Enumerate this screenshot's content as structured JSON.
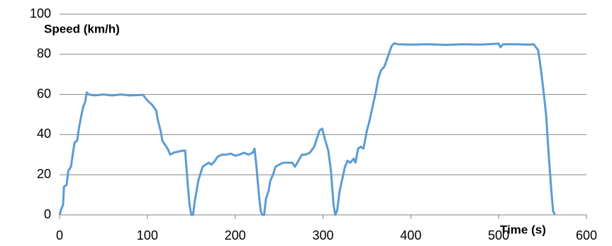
{
  "chart_data": {
    "type": "line",
    "x_label": "Time (s)",
    "y_label": "Speed (km/h)",
    "xlim": [
      0,
      600
    ],
    "xticks": [
      0,
      100,
      200,
      300,
      400,
      500,
      600
    ],
    "ylim": [
      0,
      100
    ],
    "yticks": [
      0,
      20,
      40,
      60,
      80,
      100
    ],
    "grid": true,
    "series": [
      {
        "name": "Speed",
        "color": "#5b9bd5",
        "x": [
          0,
          2,
          4,
          5,
          8,
          10,
          13,
          15,
          17,
          20,
          22,
          25,
          27,
          29,
          31,
          33,
          40,
          50,
          60,
          70,
          80,
          95,
          100,
          105,
          110,
          112,
          115,
          117,
          120,
          123,
          126,
          130,
          140,
          143,
          146,
          148,
          150,
          152,
          154,
          156,
          158,
          160,
          163,
          166,
          170,
          173,
          177,
          180,
          185,
          190,
          195,
          200,
          205,
          210,
          215,
          220,
          222,
          224,
          227,
          229,
          231,
          233,
          235,
          238,
          240,
          243,
          246,
          250,
          255,
          260,
          265,
          268,
          272,
          276,
          280,
          285,
          290,
          293,
          296,
          299,
          302,
          306,
          309,
          312,
          314,
          316,
          319,
          322,
          325,
          328,
          331,
          335,
          337,
          340,
          343,
          346,
          350,
          353,
          357,
          360,
          363,
          366,
          370,
          374,
          378,
          381,
          385,
          400,
          420,
          440,
          460,
          480,
          500,
          502,
          505,
          520,
          535,
          540,
          545,
          548,
          551,
          554,
          557,
          560,
          562,
          564
        ],
        "values": [
          0,
          3,
          5,
          14,
          15,
          22,
          24,
          30,
          36,
          37,
          43,
          50,
          54,
          56,
          61,
          60,
          59.5,
          60,
          59.5,
          60,
          59.5,
          59.8,
          57,
          55,
          52,
          47,
          42,
          37,
          35,
          33,
          30,
          31,
          32,
          32,
          15,
          5,
          0,
          0,
          7,
          12,
          17,
          20,
          24,
          25,
          26,
          25,
          27,
          29,
          30,
          30,
          30.5,
          29.5,
          30,
          31,
          30,
          31,
          33,
          25,
          10,
          2,
          0,
          0,
          8,
          12,
          17,
          20,
          24,
          25,
          26,
          26,
          26,
          24,
          27,
          30,
          30,
          31,
          34,
          38,
          42,
          43,
          38,
          32,
          22,
          5,
          0,
          2,
          12,
          18,
          24,
          27,
          26,
          28,
          26,
          33,
          34,
          33,
          42,
          47,
          55,
          61,
          68,
          72,
          74,
          79,
          84,
          85.5,
          85,
          84.8,
          85,
          84.7,
          85,
          84.8,
          85.3,
          83.5,
          85,
          85,
          84.8,
          85,
          82,
          73,
          62,
          50,
          30,
          12,
          2,
          0
        ]
      }
    ]
  }
}
